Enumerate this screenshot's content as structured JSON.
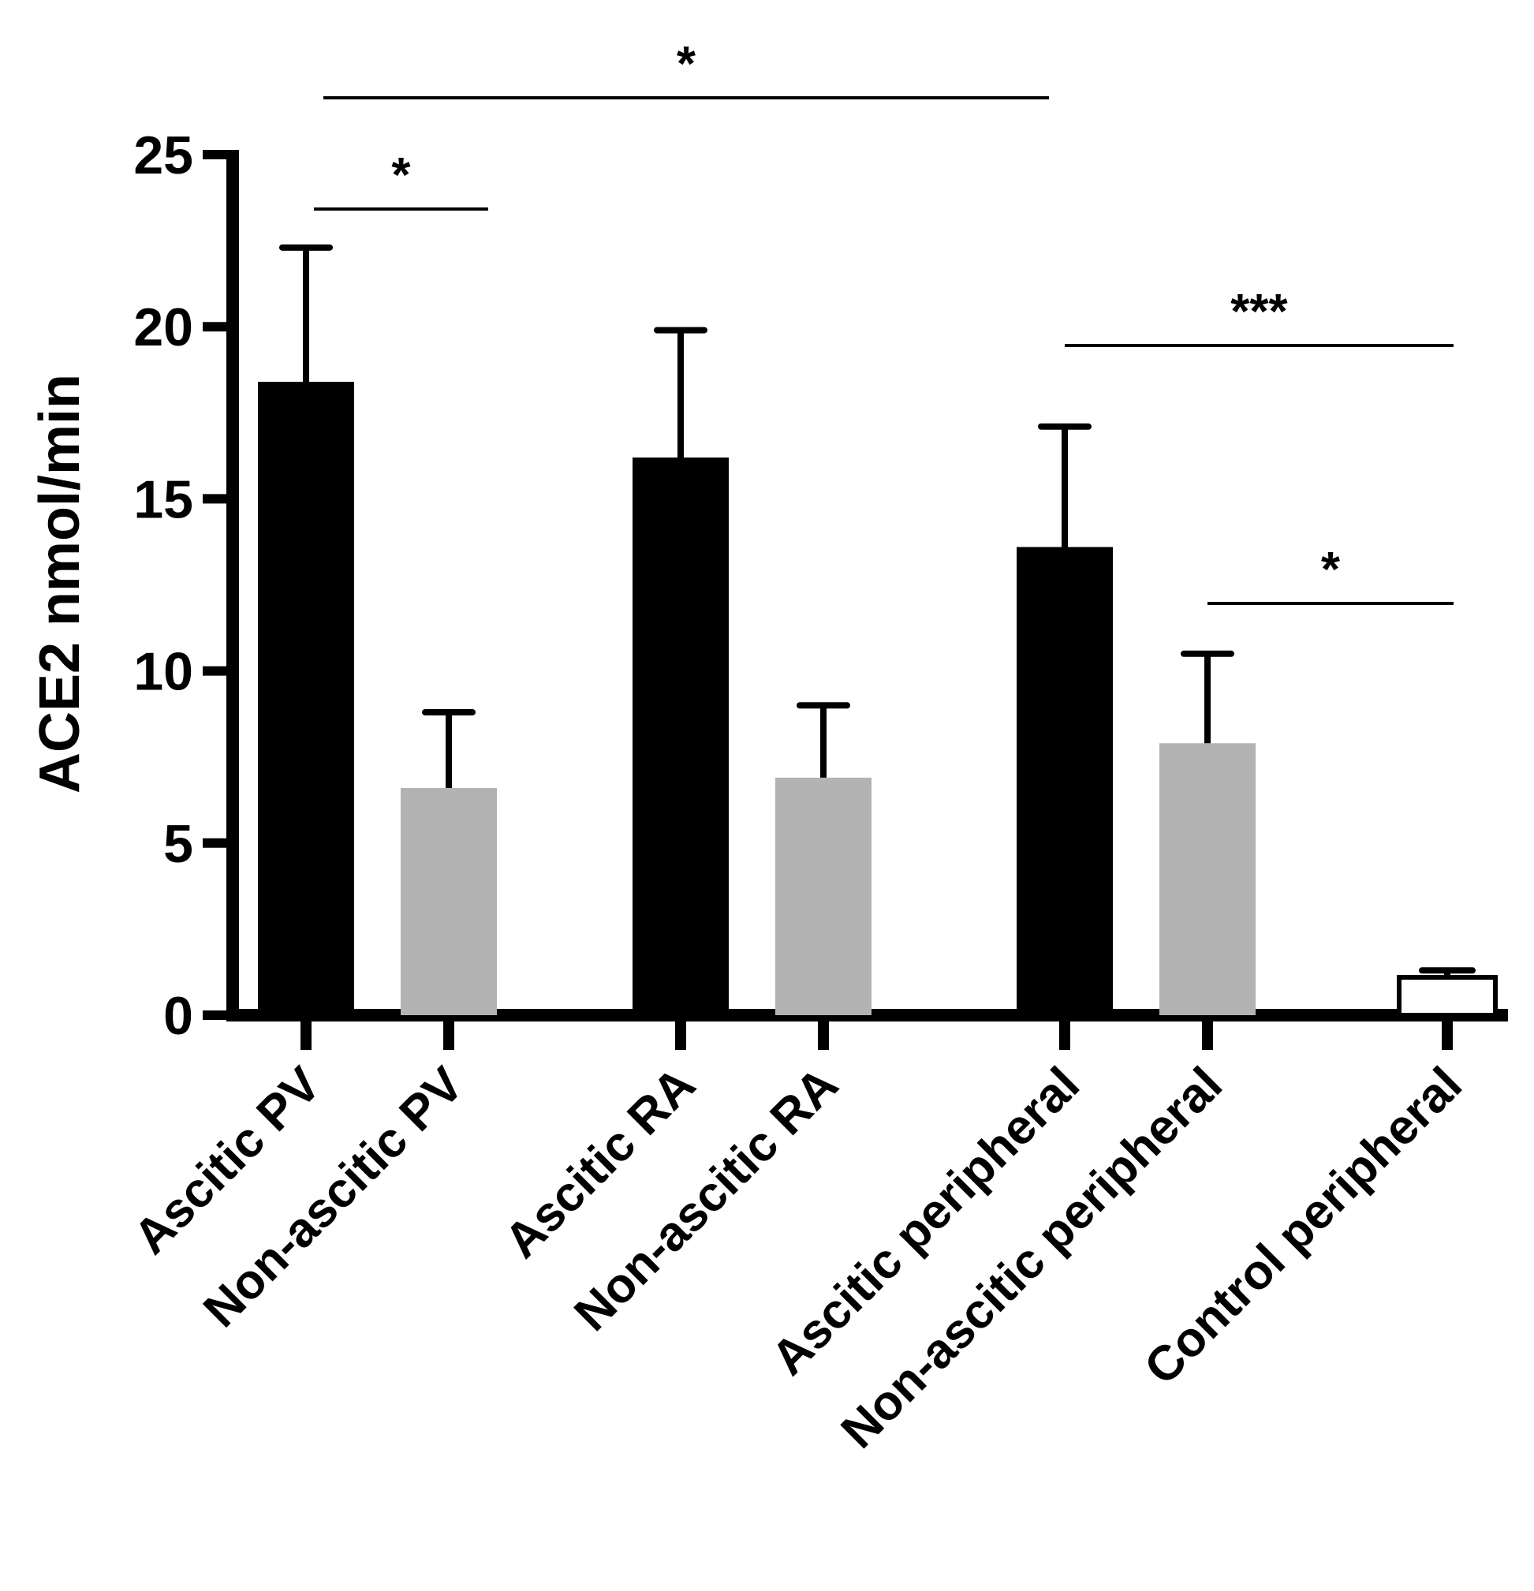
{
  "chart_data": {
    "type": "bar",
    "title": "",
    "xlabel": "",
    "ylabel": "ACE2 nmol/min",
    "ylim": [
      0,
      25
    ],
    "yticks": [
      0,
      5,
      10,
      15,
      20,
      25
    ],
    "grid": false,
    "legend": "none",
    "categories": [
      "Ascitic PV",
      "Non-ascitic PV",
      "Ascitic RA",
      "Non-ascitic RA",
      "Ascitic peripheral",
      "Non-ascitic peripheral",
      "Control peripheral"
    ],
    "values": [
      18.4,
      6.6,
      16.2,
      6.9,
      13.6,
      7.9,
      1.1
    ],
    "error_upper": [
      22.3,
      8.8,
      19.9,
      9.0,
      17.1,
      10.5,
      1.3
    ],
    "bar_colors": [
      "#000000",
      "#b3b3b3",
      "#000000",
      "#b3b3b3",
      "#000000",
      "#b3b3b3",
      "#ffffff"
    ],
    "significance": [
      {
        "from": 0,
        "to": 1,
        "label": "*"
      },
      {
        "from": 0,
        "to": 4,
        "label": "*"
      },
      {
        "from": 4,
        "to": 6,
        "label": "***"
      },
      {
        "from": 5,
        "to": 6,
        "label": "*"
      }
    ]
  }
}
